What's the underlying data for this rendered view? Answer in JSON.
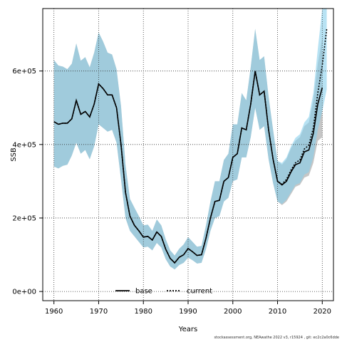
{
  "chart_data": {
    "type": "line",
    "xlabel": "Years",
    "ylabel": "SSB",
    "xlim": [
      1957.5,
      2022.5
    ],
    "ylim": [
      -25000,
      770000
    ],
    "x_ticks": [
      1960,
      1970,
      1980,
      1990,
      2000,
      2010,
      2020
    ],
    "x_tick_labels": [
      "1960",
      "1970",
      "1980",
      "1990",
      "2000",
      "2010",
      "2020"
    ],
    "y_ticks": [
      0,
      200000,
      400000,
      600000
    ],
    "y_tick_labels": [
      "0e+00",
      "2e+05",
      "4e+05",
      "6e+05"
    ],
    "grid": true,
    "legend_position": "bottom-center",
    "legend": [
      {
        "name": "base",
        "style": "solid",
        "color": "#000000"
      },
      {
        "name": "current",
        "style": "dotted",
        "color": "#000000"
      }
    ],
    "band_colors": {
      "base": "#a0a0a0",
      "current": "#87ceeb"
    },
    "x": [
      1960,
      1961,
      1962,
      1963,
      1964,
      1965,
      1966,
      1967,
      1968,
      1969,
      1970,
      1971,
      1972,
      1973,
      1974,
      1975,
      1976,
      1977,
      1978,
      1979,
      1980,
      1981,
      1982,
      1983,
      1984,
      1985,
      1986,
      1987,
      1988,
      1989,
      1990,
      1991,
      1992,
      1993,
      1994,
      1995,
      1996,
      1997,
      1998,
      1999,
      2000,
      2001,
      2002,
      2003,
      2004,
      2005,
      2006,
      2007,
      2008,
      2009,
      2010,
      2011,
      2012,
      2013,
      2014,
      2015,
      2016,
      2017,
      2018,
      2019,
      2020,
      2021
    ],
    "series": [
      {
        "name": "base",
        "x": [
          1960,
          1961,
          1962,
          1963,
          1964,
          1965,
          1966,
          1967,
          1968,
          1969,
          1970,
          1971,
          1972,
          1973,
          1974,
          1975,
          1976,
          1977,
          1978,
          1979,
          1980,
          1981,
          1982,
          1983,
          1984,
          1985,
          1986,
          1987,
          1988,
          1989,
          1990,
          1991,
          1992,
          1993,
          1994,
          1995,
          1996,
          1997,
          1998,
          1999,
          2000,
          2001,
          2002,
          2003,
          2004,
          2005,
          2006,
          2007,
          2008,
          2009,
          2010,
          2011,
          2012,
          2013,
          2014,
          2015,
          2016,
          2017,
          2018,
          2019,
          2020
        ],
        "values": [
          462000,
          455000,
          458000,
          458000,
          470000,
          520000,
          482000,
          490000,
          475000,
          510000,
          565000,
          552000,
          535000,
          535000,
          500000,
          400000,
          270000,
          205000,
          180000,
          165000,
          148000,
          150000,
          140000,
          162000,
          150000,
          115000,
          90000,
          78000,
          93000,
          100000,
          117000,
          108000,
          98000,
          100000,
          145000,
          200000,
          245000,
          248000,
          300000,
          310000,
          365000,
          375000,
          445000,
          440000,
          510000,
          600000,
          535000,
          545000,
          440000,
          360000,
          300000,
          290000,
          300000,
          325000,
          345000,
          350000,
          380000,
          385000,
          430000,
          510000,
          555000
        ],
        "lower": [
          340000,
          335000,
          342000,
          345000,
          370000,
          405000,
          375000,
          385000,
          360000,
          395000,
          455000,
          445000,
          435000,
          440000,
          405000,
          305000,
          200000,
          165000,
          150000,
          135000,
          120000,
          122000,
          112000,
          132000,
          120000,
          88000,
          68000,
          60000,
          72000,
          78000,
          92000,
          85000,
          76000,
          78000,
          115000,
          165000,
          200000,
          205000,
          245000,
          255000,
          300000,
          305000,
          365000,
          365000,
          420000,
          500000,
          440000,
          450000,
          360000,
          295000,
          245000,
          235000,
          245000,
          265000,
          285000,
          290000,
          310000,
          315000,
          350000,
          410000,
          420000
        ],
        "upper": [
          630000,
          615000,
          612000,
          605000,
          620000,
          675000,
          628000,
          638000,
          610000,
          650000,
          705000,
          680000,
          650000,
          645000,
          605000,
          505000,
          345000,
          252000,
          228000,
          205000,
          180000,
          182000,
          165000,
          196000,
          180000,
          142000,
          112000,
          98000,
          116000,
          128000,
          148000,
          135000,
          122000,
          124000,
          180000,
          245000,
          300000,
          300000,
          358000,
          375000,
          455000,
          455000,
          540000,
          520000,
          610000,
          715000,
          630000,
          640000,
          530000,
          440000,
          355000,
          345000,
          360000,
          390000,
          410000,
          420000,
          450000,
          460000,
          520000,
          620000,
          690000
        ]
      },
      {
        "name": "current",
        "values": [
          462000,
          455000,
          458000,
          458000,
          470000,
          520000,
          482000,
          490000,
          475000,
          510000,
          565000,
          552000,
          535000,
          535000,
          500000,
          400000,
          270000,
          205000,
          180000,
          165000,
          148000,
          150000,
          140000,
          162000,
          150000,
          115000,
          90000,
          78000,
          93000,
          100000,
          117000,
          108000,
          98000,
          100000,
          145000,
          200000,
          245000,
          248000,
          300000,
          310000,
          365000,
          375000,
          445000,
          440000,
          510000,
          600000,
          535000,
          545000,
          440000,
          360000,
          300000,
          292000,
          305000,
          330000,
          350000,
          358000,
          388000,
          398000,
          445000,
          540000,
          615000,
          715000
        ],
        "lower": [
          340000,
          335000,
          342000,
          345000,
          370000,
          405000,
          375000,
          385000,
          360000,
          395000,
          455000,
          445000,
          435000,
          440000,
          405000,
          305000,
          200000,
          165000,
          150000,
          135000,
          120000,
          122000,
          112000,
          132000,
          120000,
          88000,
          68000,
          60000,
          72000,
          78000,
          92000,
          85000,
          76000,
          78000,
          115000,
          165000,
          200000,
          205000,
          245000,
          255000,
          300000,
          305000,
          365000,
          365000,
          420000,
          500000,
          440000,
          450000,
          360000,
          295000,
          245000,
          238000,
          250000,
          270000,
          290000,
          295000,
          318000,
          325000,
          365000,
          440000,
          490000,
          550000
        ],
        "upper": [
          630000,
          615000,
          612000,
          605000,
          620000,
          675000,
          628000,
          638000,
          610000,
          650000,
          705000,
          680000,
          650000,
          645000,
          605000,
          505000,
          345000,
          252000,
          228000,
          205000,
          180000,
          182000,
          165000,
          196000,
          180000,
          142000,
          112000,
          98000,
          116000,
          128000,
          148000,
          135000,
          122000,
          124000,
          180000,
          245000,
          300000,
          300000,
          358000,
          375000,
          455000,
          455000,
          540000,
          520000,
          610000,
          715000,
          630000,
          640000,
          530000,
          440000,
          355000,
          350000,
          365000,
          395000,
          418000,
          428000,
          460000,
          475000,
          540000,
          660000,
          770000,
          770000
        ]
      }
    ]
  },
  "footer": "stockassessment.org, NEAwathe 2022 v3, r15924 , git: ec2c2a0c6dde"
}
